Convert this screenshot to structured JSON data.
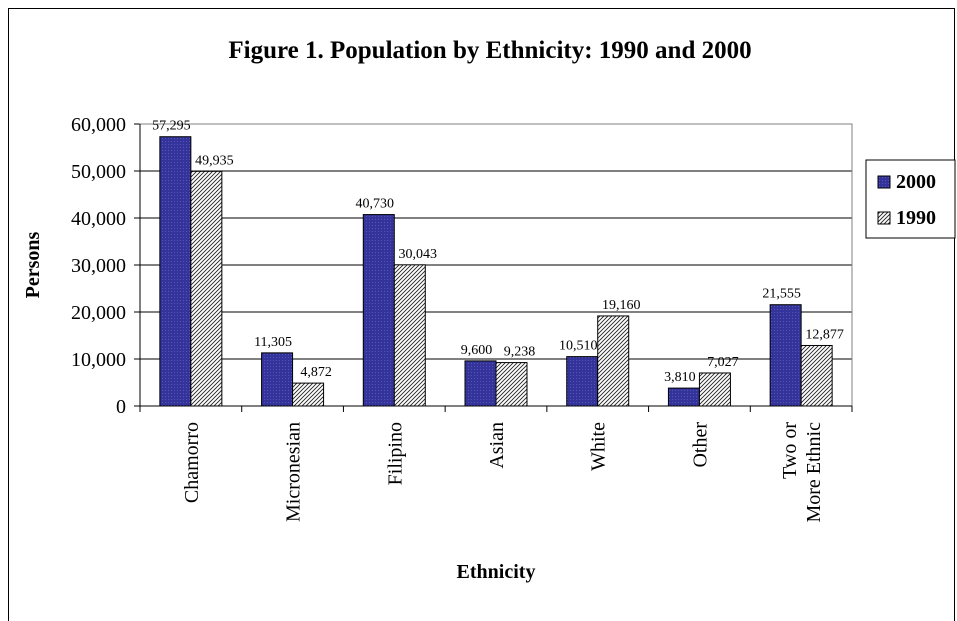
{
  "chart_data": {
    "type": "bar",
    "title": "Figure 1. Population by Ethnicity:  1990 and 2000",
    "xlabel": "Ethnicity",
    "ylabel": "Persons",
    "ylim": [
      0,
      60000
    ],
    "yticks": [
      "0",
      "10,000",
      "20,000",
      "30,000",
      "40,000",
      "50,000",
      "60,000"
    ],
    "grid": true,
    "legend_position": "right",
    "categories": [
      [
        "Chamorro"
      ],
      [
        "Micronesian"
      ],
      [
        "Filipino"
      ],
      [
        "Asian"
      ],
      [
        "White"
      ],
      [
        "Other"
      ],
      [
        "Two or",
        "More Ethnic"
      ]
    ],
    "series": [
      {
        "name": "2000",
        "color": "#333399",
        "pattern": "solid",
        "values": [
          57295,
          11305,
          40730,
          9600,
          10510,
          3810,
          21555
        ],
        "labels": [
          "57,295",
          "11,305",
          "40,730",
          "9,600",
          "10,510",
          "3,810",
          "21,555"
        ]
      },
      {
        "name": "1990",
        "color": "#ffffff",
        "pattern": "hatch",
        "values": [
          49935,
          4872,
          30043,
          9238,
          19160,
          7027,
          12877
        ],
        "labels": [
          "49,935",
          "4,872",
          "30,043",
          "9,238",
          "19,160",
          "7,027",
          "12,877"
        ]
      }
    ]
  }
}
